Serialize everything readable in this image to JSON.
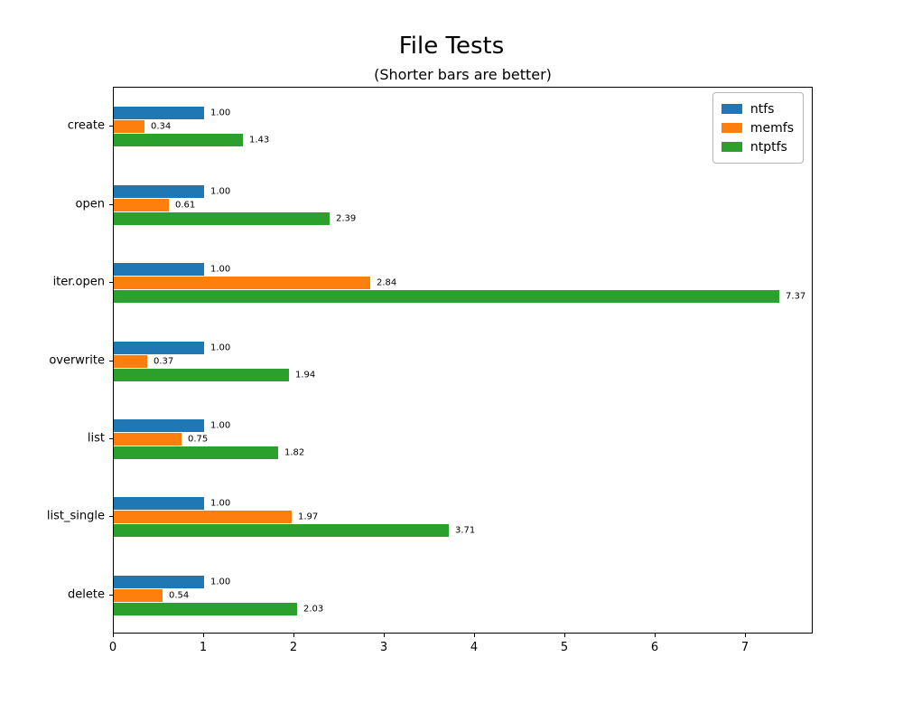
{
  "chart_data": {
    "type": "bar",
    "orientation": "horizontal",
    "title": "File Tests",
    "subtitle": "(Shorter bars are better)",
    "xlabel": "",
    "ylabel": "",
    "categories": [
      "create",
      "open",
      "iter.open",
      "overwrite",
      "list",
      "list_single",
      "delete"
    ],
    "series": [
      {
        "name": "ntfs",
        "color": "#1f77b4",
        "values": [
          1.0,
          1.0,
          1.0,
          1.0,
          1.0,
          1.0,
          1.0
        ]
      },
      {
        "name": "memfs",
        "color": "#ff7f0e",
        "values": [
          0.34,
          0.61,
          2.84,
          0.37,
          0.75,
          1.97,
          0.54
        ]
      },
      {
        "name": "ntptfs",
        "color": "#2ca02c",
        "values": [
          1.43,
          2.39,
          7.37,
          1.94,
          1.82,
          3.71,
          2.03
        ]
      }
    ],
    "bar_label_format": "2-decimals",
    "xlim": [
      0,
      7.75
    ],
    "x_ticks": [
      0,
      1,
      2,
      3,
      4,
      5,
      6,
      7
    ],
    "grid": false,
    "legend": {
      "position": "upper right",
      "entries": [
        "ntfs",
        "memfs",
        "ntptfs"
      ]
    }
  }
}
